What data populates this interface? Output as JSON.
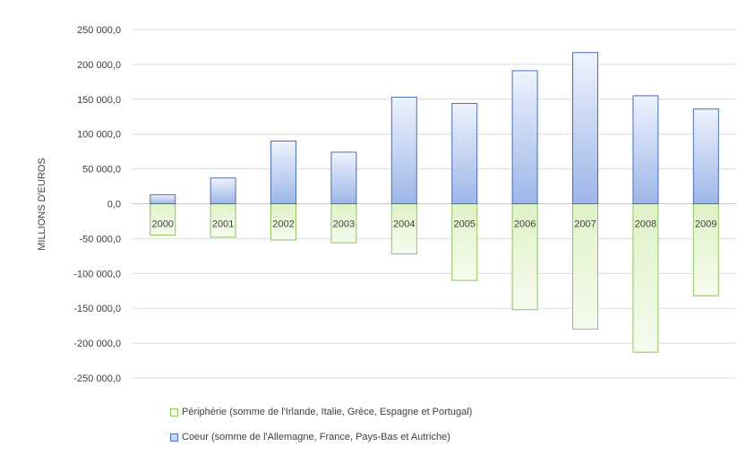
{
  "chart_data": {
    "type": "bar",
    "stacked": true,
    "categories": [
      "2000",
      "2001",
      "2002",
      "2003",
      "2004",
      "2005",
      "2006",
      "2007",
      "2008",
      "2009"
    ],
    "series": [
      {
        "name": "Périphérie (somme de l'Irlande, Italie, Grèce, Espagne et Portugal)",
        "color": "#bfe39a",
        "values": [
          -45000,
          -48000,
          -52000,
          -56000,
          -72000,
          -110000,
          -152000,
          -180000,
          -213000,
          -132000
        ]
      },
      {
        "name": "Coeur (somme de l'Allemagne, France, Pays-Bas et Autriche)",
        "color": "#a9c1ec",
        "values": [
          13000,
          37000,
          90000,
          74000,
          153000,
          144000,
          191000,
          217000,
          155000,
          136000
        ]
      }
    ],
    "ylabel": "MILLIONS D'EUROS",
    "ylim": [
      -250000,
      250000
    ],
    "yticks": [
      250000,
      200000,
      150000,
      100000,
      50000,
      0,
      -50000,
      -100000,
      -150000,
      -200000,
      -250000
    ],
    "ytick_labels": [
      "250 000,0",
      "200 000,0",
      "150 000,0",
      "100 000,0",
      "50 000,0",
      "0,0",
      "-50 000,0",
      "-100 000,0",
      "-150 000,0",
      "-200 000,0",
      "-250 000,0"
    ],
    "grid": true,
    "legend_position": "bottom"
  }
}
